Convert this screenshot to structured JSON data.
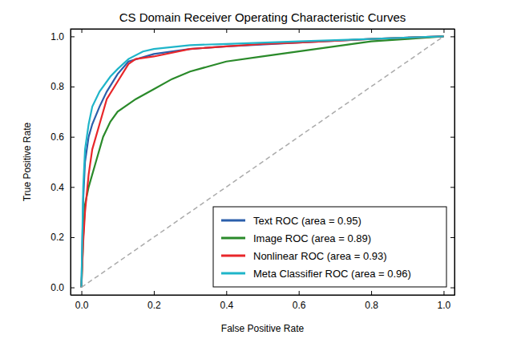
{
  "chart_data": {
    "type": "line",
    "title": "CS Domain Receiver Operating Characteristic Curves",
    "x_label": "False Positive Rate",
    "y_label": "True Positive Rate",
    "xlim": [
      -0.03,
      1.03
    ],
    "ylim": [
      -0.03,
      1.03
    ],
    "xticks": [
      {
        "value": 0,
        "label": "0.0"
      },
      0.2,
      0.4,
      0.6,
      0.8,
      {
        "value": 1,
        "label": "1.0"
      }
    ],
    "yticks": [
      {
        "value": 0,
        "label": "0.0"
      },
      0.2,
      0.4,
      0.6,
      0.8,
      {
        "value": 1,
        "label": "1.0"
      }
    ],
    "grid": false,
    "legend": "lower right",
    "series": [
      {
        "name": "Text ROC (area = 0.95)",
        "color": "#2b5fab",
        "x": [
          0,
          0.005,
          0.01,
          0.02,
          0.03,
          0.05,
          0.07,
          0.1,
          0.13,
          0.2,
          0.3,
          0.4,
          0.6,
          0.8,
          1
        ],
        "values": [
          0,
          0.35,
          0.5,
          0.6,
          0.65,
          0.72,
          0.78,
          0.85,
          0.9,
          0.93,
          0.95,
          0.96,
          0.975,
          0.99,
          1
        ]
      },
      {
        "name": "Image ROC (area = 0.89)",
        "color": "#2a8a2a",
        "x": [
          0,
          0.005,
          0.01,
          0.02,
          0.04,
          0.06,
          0.08,
          0.1,
          0.15,
          0.2,
          0.25,
          0.3,
          0.35,
          0.4,
          0.5,
          0.6,
          0.7,
          0.8,
          0.9,
          1
        ],
        "values": [
          0,
          0.2,
          0.33,
          0.4,
          0.5,
          0.6,
          0.66,
          0.7,
          0.75,
          0.79,
          0.83,
          0.86,
          0.88,
          0.9,
          0.92,
          0.94,
          0.96,
          0.98,
          0.99,
          1
        ]
      },
      {
        "name": "Nonlinear ROC (area = 0.93)",
        "color": "#e8262a",
        "x": [
          0,
          0.005,
          0.01,
          0.02,
          0.03,
          0.05,
          0.07,
          0.1,
          0.13,
          0.15,
          0.2,
          0.3,
          0.4,
          0.5,
          0.6,
          0.8,
          1
        ],
        "values": [
          0,
          0.18,
          0.3,
          0.45,
          0.55,
          0.65,
          0.75,
          0.82,
          0.89,
          0.91,
          0.92,
          0.95,
          0.96,
          0.97,
          0.975,
          0.99,
          1
        ]
      },
      {
        "name": "Meta Classifier ROC (area = 0.96)",
        "color": "#1fb5c9",
        "x": [
          0,
          0.005,
          0.01,
          0.02,
          0.03,
          0.05,
          0.08,
          0.1,
          0.13,
          0.17,
          0.2,
          0.3,
          0.4,
          0.6,
          0.8,
          1
        ],
        "values": [
          0,
          0.4,
          0.55,
          0.65,
          0.72,
          0.78,
          0.84,
          0.87,
          0.91,
          0.94,
          0.95,
          0.965,
          0.97,
          0.98,
          0.99,
          1
        ]
      },
      {
        "color": "#aaaaaa",
        "line_style": "dashed",
        "x": [
          0,
          1
        ],
        "values": [
          0,
          1
        ]
      }
    ]
  }
}
